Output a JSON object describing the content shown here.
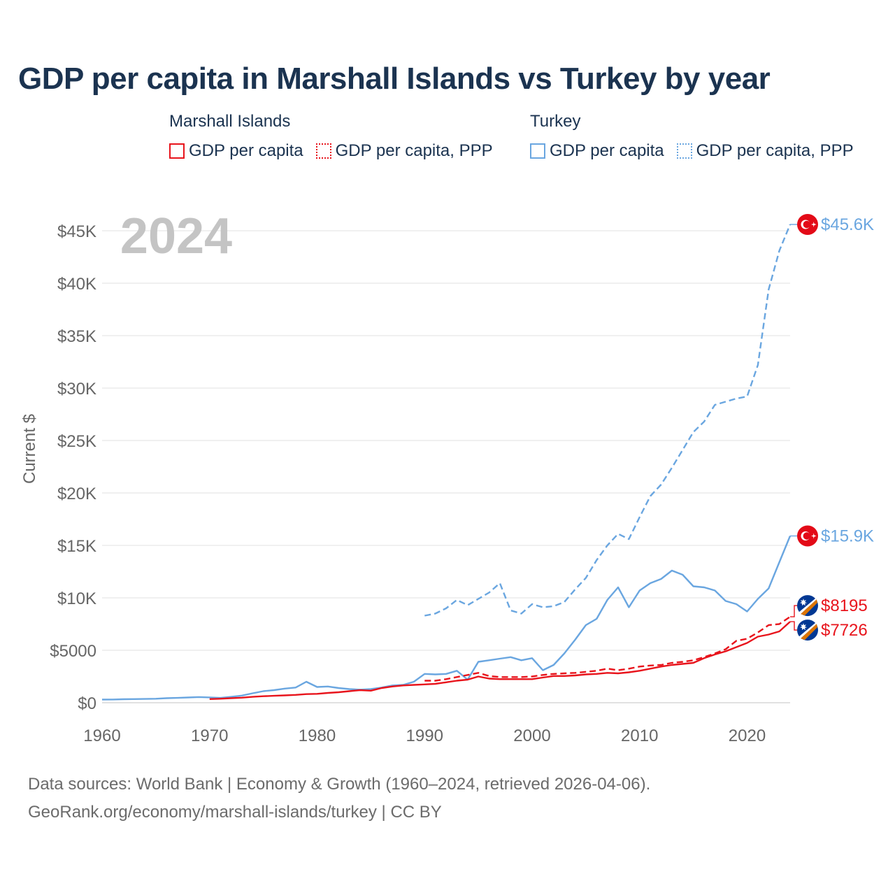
{
  "title": "GDP per capita in Marshall Islands vs Turkey by year",
  "legend": {
    "groups": [
      {
        "country": "Marshall Islands",
        "items": [
          {
            "label": "GDP per capita",
            "style": "solid",
            "color": "#e8141c"
          },
          {
            "label": "GDP per capita, PPP",
            "style": "dotted",
            "color": "#e8141c"
          }
        ]
      },
      {
        "country": "Turkey",
        "items": [
          {
            "label": "GDP per capita",
            "style": "solid",
            "color": "#6aa6e0"
          },
          {
            "label": "GDP per capita, PPP",
            "style": "dotted",
            "color": "#6aa6e0"
          }
        ]
      }
    ]
  },
  "chart_data": {
    "type": "line",
    "title": "GDP per capita in Marshall Islands vs Turkey by year",
    "year_label": "2024",
    "ylabel": "Current $",
    "xlabel": "",
    "xlim": [
      1960,
      2024
    ],
    "ylim": [
      0,
      47000
    ],
    "x_ticks": [
      1960,
      1970,
      1980,
      1990,
      2000,
      2010,
      2020
    ],
    "x_tick_labels": [
      "1960",
      "1970",
      "1980",
      "1990",
      "2000",
      "2010",
      "2020"
    ],
    "y_ticks": [
      0,
      5000,
      10000,
      15000,
      20000,
      25000,
      30000,
      35000,
      40000,
      45000
    ],
    "y_tick_labels": [
      "$0",
      "$5000",
      "$10K",
      "$15K",
      "$20K",
      "$25K",
      "$30K",
      "$35K",
      "$40K",
      "$45K"
    ],
    "grid": true,
    "series": [
      {
        "name": "Turkey GDP per capita",
        "color": "#6aa6e0",
        "dash": "solid",
        "end_label": "$15.9K",
        "flag": "turkey-flag-icon",
        "x": [
          1960,
          1961,
          1962,
          1963,
          1964,
          1965,
          1966,
          1967,
          1968,
          1969,
          1970,
          1971,
          1972,
          1973,
          1974,
          1975,
          1976,
          1977,
          1978,
          1979,
          1980,
          1981,
          1982,
          1983,
          1984,
          1985,
          1986,
          1987,
          1988,
          1989,
          1990,
          1991,
          1992,
          1993,
          1994,
          1995,
          1996,
          1997,
          1998,
          1999,
          2000,
          2001,
          2002,
          2003,
          2004,
          2005,
          2006,
          2007,
          2008,
          2009,
          2010,
          2011,
          2012,
          2013,
          2014,
          2015,
          2016,
          2017,
          2018,
          2019,
          2020,
          2021,
          2022,
          2023,
          2024
        ],
        "values": [
          300,
          310,
          330,
          350,
          360,
          380,
          430,
          460,
          500,
          540,
          510,
          460,
          560,
          680,
          900,
          1100,
          1200,
          1350,
          1450,
          2000,
          1500,
          1550,
          1400,
          1300,
          1250,
          1300,
          1450,
          1650,
          1700,
          2000,
          2750,
          2700,
          2750,
          3050,
          2200,
          3900,
          4050,
          4200,
          4350,
          4050,
          4250,
          3100,
          3600,
          4700,
          6000,
          7400,
          8000,
          9800,
          11000,
          9100,
          10700,
          11400,
          11800,
          12600,
          12200,
          11100,
          11000,
          10700,
          9700,
          9400,
          8700,
          9900,
          10900,
          13400,
          15900
        ]
      },
      {
        "name": "Turkey GDP per capita, PPP",
        "color": "#6aa6e0",
        "dash": "dashed",
        "end_label": "$45.6K",
        "flag": "turkey-flag-icon",
        "x": [
          1990,
          1991,
          1992,
          1993,
          1994,
          1995,
          1996,
          1997,
          1998,
          1999,
          2000,
          2001,
          2002,
          2003,
          2004,
          2005,
          2006,
          2007,
          2008,
          2009,
          2010,
          2011,
          2012,
          2013,
          2014,
          2015,
          2016,
          2017,
          2018,
          2019,
          2020,
          2021,
          2022,
          2023,
          2024
        ],
        "values": [
          8300,
          8500,
          9000,
          9800,
          9300,
          9900,
          10500,
          11400,
          8800,
          8500,
          9400,
          9100,
          9200,
          9600,
          10800,
          11900,
          13600,
          15000,
          16100,
          15600,
          17700,
          19700,
          20800,
          22400,
          24100,
          25800,
          26800,
          28400,
          28700,
          29000,
          29200,
          32200,
          39400,
          43100,
          45600
        ]
      },
      {
        "name": "Marshall Islands GDP per capita",
        "color": "#e8141c",
        "dash": "solid",
        "end_label": "$7726",
        "flag": "marshall-islands-flag-icon",
        "x": [
          1970,
          1971,
          1972,
          1973,
          1974,
          1975,
          1976,
          1977,
          1978,
          1979,
          1980,
          1981,
          1982,
          1983,
          1984,
          1985,
          1986,
          1987,
          1988,
          1989,
          1990,
          1991,
          1992,
          1993,
          1994,
          1995,
          1996,
          1997,
          1998,
          1999,
          2000,
          2001,
          2002,
          2003,
          2004,
          2005,
          2006,
          2007,
          2008,
          2009,
          2010,
          2011,
          2012,
          2013,
          2014,
          2015,
          2016,
          2017,
          2018,
          2019,
          2020,
          2021,
          2022,
          2023,
          2024
        ],
        "values": [
          350,
          380,
          430,
          480,
          560,
          620,
          660,
          700,
          750,
          820,
          850,
          930,
          1000,
          1100,
          1200,
          1150,
          1400,
          1550,
          1650,
          1700,
          1750,
          1800,
          1950,
          2100,
          2200,
          2500,
          2300,
          2250,
          2250,
          2250,
          2250,
          2400,
          2550,
          2550,
          2600,
          2700,
          2750,
          2850,
          2800,
          2900,
          3050,
          3250,
          3450,
          3600,
          3700,
          3800,
          4250,
          4600,
          4900,
          5300,
          5700,
          6300,
          6500,
          6800,
          7726
        ]
      },
      {
        "name": "Marshall Islands GDP per capita, PPP",
        "color": "#e8141c",
        "dash": "dashed",
        "end_label": "$8195",
        "flag": "marshall-islands-flag-icon",
        "x": [
          1990,
          1991,
          1992,
          1993,
          1994,
          1995,
          1996,
          1997,
          1998,
          1999,
          2000,
          2001,
          2002,
          2003,
          2004,
          2005,
          2006,
          2007,
          2008,
          2009,
          2010,
          2011,
          2012,
          2013,
          2014,
          2015,
          2016,
          2017,
          2018,
          2019,
          2020,
          2021,
          2022,
          2023,
          2024
        ],
        "values": [
          2100,
          2100,
          2250,
          2450,
          2650,
          2850,
          2550,
          2450,
          2450,
          2450,
          2500,
          2650,
          2750,
          2800,
          2850,
          2950,
          3050,
          3250,
          3100,
          3250,
          3450,
          3550,
          3600,
          3800,
          3900,
          4050,
          4350,
          4700,
          5100,
          5900,
          6100,
          6700,
          7400,
          7500,
          8195
        ]
      }
    ]
  },
  "footer": {
    "line1": "Data sources: World Bank | Economy & Growth (1960–2024, retrieved 2026-04-06).",
    "line2": "GeoRank.org/economy/marshall-islands/turkey | CC BY"
  }
}
